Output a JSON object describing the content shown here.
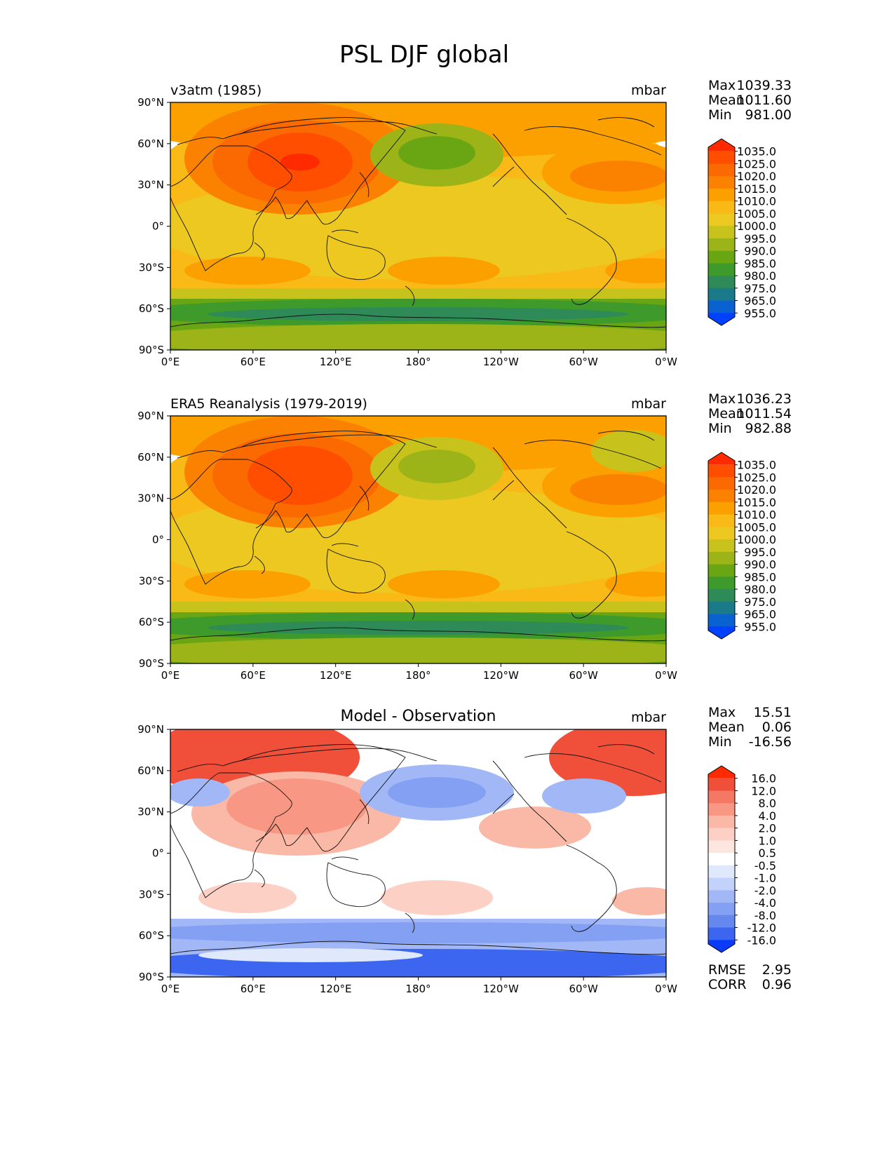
{
  "figure": {
    "title": "PSL DJF global"
  },
  "axes": {
    "lat_ticks": [
      "90°N",
      "60°N",
      "30°N",
      "0°",
      "30°S",
      "60°S",
      "90°S"
    ],
    "lon_ticks": [
      "0°E",
      "60°E",
      "120°E",
      "180°",
      "120°W",
      "60°W",
      "0°W"
    ]
  },
  "chart_data": [
    {
      "type": "heatmap",
      "title": "v3atm (1985)",
      "units": "mbar",
      "stats": [
        {
          "label": "Max",
          "value": "1039.33"
        },
        {
          "label": "Mean",
          "value": "1011.60"
        },
        {
          "label": "Min",
          "value": "981.00"
        }
      ],
      "colorbar": {
        "levels": [
          "1035.0",
          "1025.0",
          "1020.0",
          "1015.0",
          "1010.0",
          "1005.0",
          "1000.0",
          "995.0",
          "990.0",
          "985.0",
          "980.0",
          "975.0",
          "965.0",
          "955.0"
        ],
        "colors": [
          "#ff2a00",
          "#ff4e00",
          "#fb6a00",
          "#fb8200",
          "#fca000",
          "#f9ba18",
          "#ecc820",
          "#c8c21c",
          "#9cb418",
          "#6aa614",
          "#3e9a2a",
          "#2e8a56",
          "#1a7a8a",
          "#0a62d0",
          "#0040ff"
        ]
      }
    },
    {
      "type": "heatmap",
      "title": "ERA5 Reanalysis (1979-2019)",
      "units": "mbar",
      "stats": [
        {
          "label": "Max",
          "value": "1036.23"
        },
        {
          "label": "Mean",
          "value": "1011.54"
        },
        {
          "label": "Min",
          "value": "982.88"
        }
      ],
      "colorbar": {
        "levels": [
          "1035.0",
          "1025.0",
          "1020.0",
          "1015.0",
          "1010.0",
          "1005.0",
          "1000.0",
          "995.0",
          "990.0",
          "985.0",
          "980.0",
          "975.0",
          "965.0",
          "955.0"
        ],
        "colors": [
          "#ff2a00",
          "#ff4e00",
          "#fb6a00",
          "#fb8200",
          "#fca000",
          "#f9ba18",
          "#ecc820",
          "#c8c21c",
          "#9cb418",
          "#6aa614",
          "#3e9a2a",
          "#2e8a56",
          "#1a7a8a",
          "#0a62d0",
          "#0040ff"
        ]
      }
    },
    {
      "type": "heatmap",
      "title": "Model - Observation",
      "units": "mbar",
      "stats": [
        {
          "label": "Max",
          "value": "15.51"
        },
        {
          "label": "Mean",
          "value": "0.06"
        },
        {
          "label": "Min",
          "value": "-16.56"
        }
      ],
      "metrics": [
        {
          "label": "RMSE",
          "value": "2.95"
        },
        {
          "label": "CORR",
          "value": "0.96"
        }
      ],
      "colorbar": {
        "levels": [
          "16.0",
          "12.0",
          "8.0",
          "4.0",
          "2.0",
          "1.0",
          "0.5",
          "-0.5",
          "-1.0",
          "-2.0",
          "-4.0",
          "-8.0",
          "-12.0",
          "-16.0"
        ],
        "colors": [
          "#ff2a00",
          "#f0503a",
          "#f47864",
          "#f89884",
          "#fab8a6",
          "#fcd0c4",
          "#fde6e0",
          "#ffffff",
          "#e0e8fc",
          "#c2d2fa",
          "#a2b8f6",
          "#84a0f2",
          "#6488ee",
          "#3c66f0",
          "#0a3cf8"
        ]
      }
    }
  ]
}
